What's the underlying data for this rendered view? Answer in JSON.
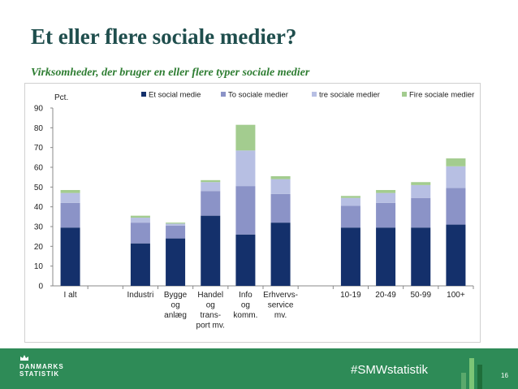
{
  "title": "Et eller flere sociale medier?",
  "subtitle": "Virksomheder, der bruger en eller flere typer sociale medier",
  "footer": {
    "hashtag": "#SMWstatistik",
    "page_number": "16",
    "logo_line1": "DANMARKS",
    "logo_line2": "STATISTIK"
  },
  "chart_data": {
    "type": "bar",
    "stacked": true,
    "ylabel": "Pct.",
    "ylim": [
      0,
      90
    ],
    "yticks": [
      0,
      10,
      20,
      30,
      40,
      50,
      60,
      70,
      80,
      90
    ],
    "legend_position": "top",
    "categories": [
      [
        "I alt"
      ],
      [],
      [
        "Industri"
      ],
      [
        "Bygge",
        "og",
        "anlæg"
      ],
      [
        "Handel",
        "og",
        "trans-",
        "port mv."
      ],
      [
        "Info",
        "og",
        "komm."
      ],
      [
        "Erhvervs-",
        "service",
        "mv."
      ],
      [],
      [
        "10-19"
      ],
      [
        "20-49"
      ],
      [
        "50-99"
      ],
      [
        "100+"
      ]
    ],
    "series": [
      {
        "name": "Et social medie",
        "color": "#14306b",
        "values": [
          29.5,
          null,
          21.5,
          24,
          35.5,
          26,
          32,
          null,
          29.5,
          29.5,
          29.5,
          31
        ]
      },
      {
        "name": "To sociale medier",
        "color": "#8b93c7",
        "values": [
          12.5,
          null,
          10.5,
          6.5,
          12.5,
          24.5,
          14.5,
          null,
          11,
          12.5,
          15,
          18.5
        ]
      },
      {
        "name": "tre sociale medier",
        "color": "#b7bfe3",
        "values": [
          5,
          null,
          2.5,
          1,
          4.5,
          18,
          7.5,
          null,
          4,
          5,
          6.5,
          11
        ]
      },
      {
        "name": "Fire sociale medier",
        "color": "#a3cc8f",
        "values": [
          1.5,
          null,
          1,
          0.5,
          1,
          13,
          1.5,
          null,
          1,
          1.5,
          1.5,
          4
        ]
      }
    ]
  }
}
